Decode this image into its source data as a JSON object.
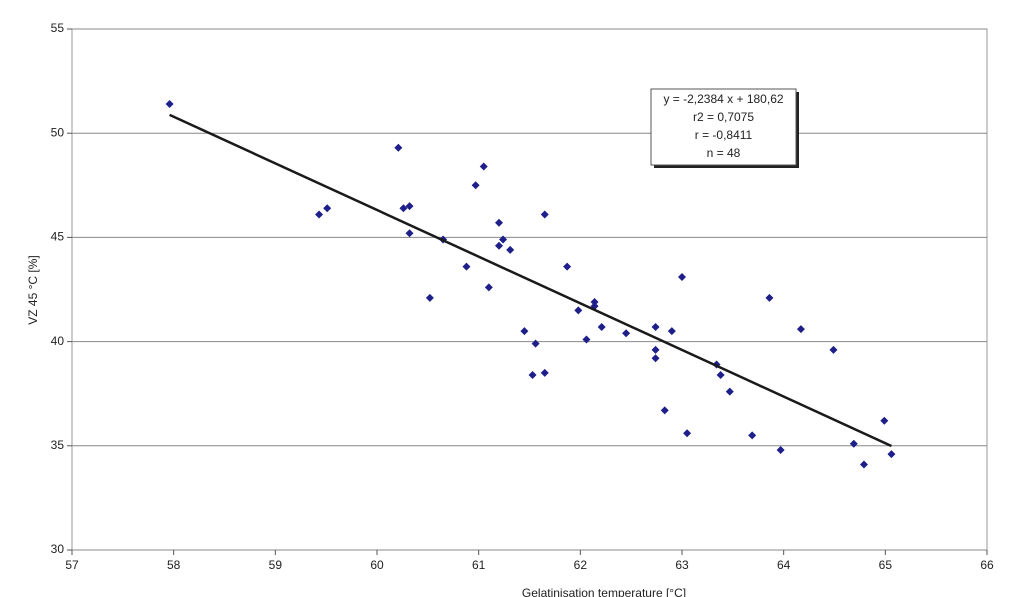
{
  "chart_data": {
    "type": "scatter",
    "x_label": "Gelatinisation temperature [°C]",
    "y_label": "VZ 45 °C [%]",
    "xlim": [
      57,
      66
    ],
    "xticks": [
      57,
      58,
      59,
      60,
      61,
      62,
      63,
      64,
      65,
      66
    ],
    "ylim": [
      30,
      55
    ],
    "yticks": [
      30,
      35,
      40,
      45,
      50,
      55
    ],
    "grid": true,
    "color": "#1f1f8a",
    "series": [
      {
        "x": [
          57.96,
          59.43,
          59.51,
          60.21,
          60.26,
          60.32,
          60.32,
          60.65,
          60.52,
          60.88,
          60.97,
          61.05,
          61.1,
          61.2,
          61.2,
          61.24,
          61.31,
          61.65,
          61.45,
          61.56,
          61.53,
          61.65,
          61.87,
          61.98,
          62.06,
          62.14,
          62.14,
          62.21,
          62.45,
          62.74,
          62.74,
          62.74,
          62.9,
          63.0,
          62.83,
          63.05,
          63.34,
          63.38,
          63.47,
          63.69,
          63.86,
          63.97,
          64.17,
          64.49,
          64.69,
          64.79,
          64.99,
          65.06
        ],
        "values": [
          51.4,
          46.1,
          46.4,
          49.3,
          46.4,
          46.5,
          45.2,
          44.9,
          42.1,
          43.6,
          47.5,
          48.4,
          42.6,
          45.7,
          44.6,
          44.9,
          44.4,
          46.1,
          40.5,
          39.9,
          38.4,
          38.5,
          43.6,
          41.5,
          40.1,
          41.9,
          41.7,
          40.7,
          40.4,
          40.7,
          39.6,
          39.2,
          40.5,
          43.1,
          36.7,
          35.6,
          38.9,
          38.4,
          37.6,
          35.5,
          42.1,
          34.8,
          40.6,
          39.6,
          35.1,
          34.1,
          36.2,
          34.6
        ]
      }
    ],
    "trendline": {
      "x": [
        57.96,
        65.06
      ],
      "values": [
        50.88,
        34.99
      ],
      "color": "#1a1a1a"
    },
    "annotation": [
      "y = -2,2384 x + 180,62",
      "r2 = 0,7075",
      "r = -0,8411",
      "n = 48"
    ]
  }
}
